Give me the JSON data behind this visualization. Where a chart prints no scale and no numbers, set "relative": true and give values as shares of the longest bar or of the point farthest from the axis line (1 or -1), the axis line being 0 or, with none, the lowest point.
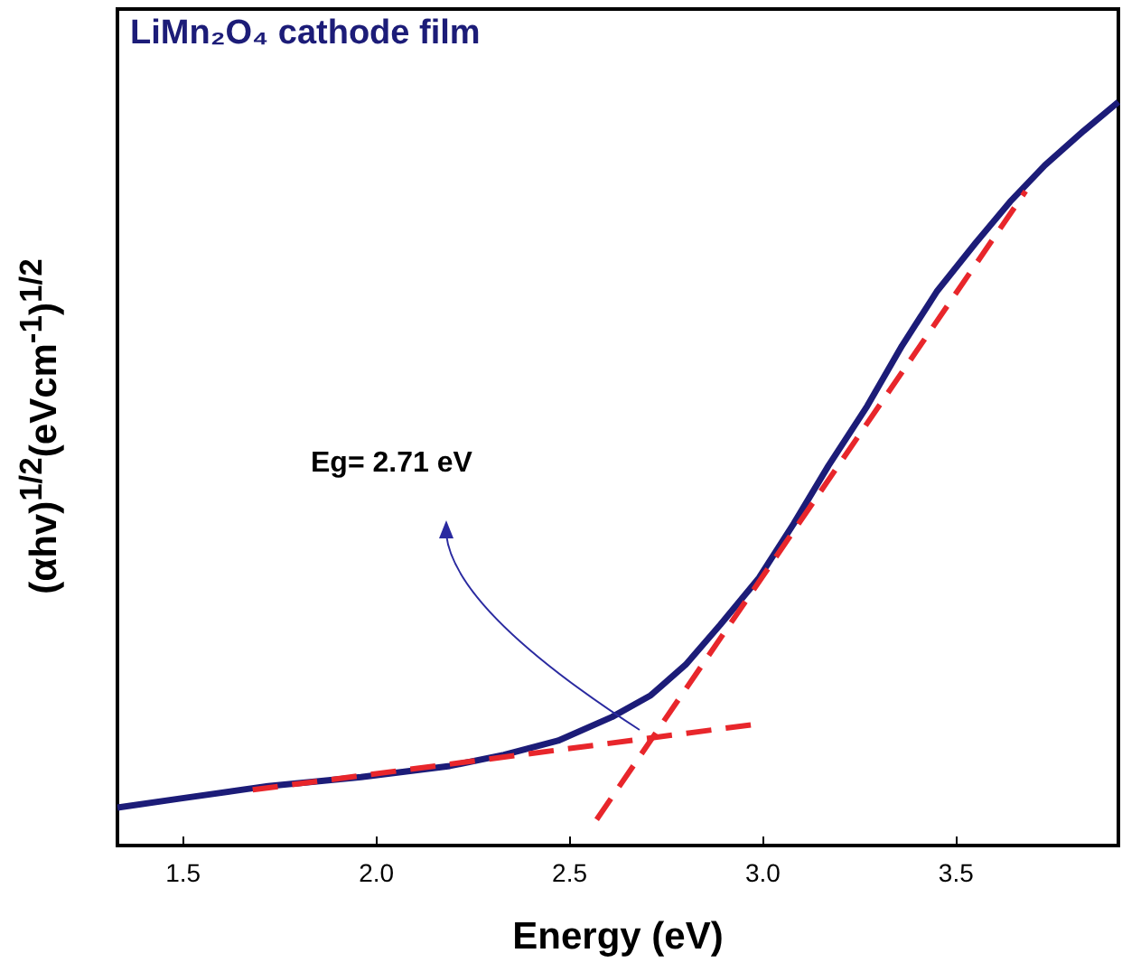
{
  "chart_data": {
    "type": "line",
    "title": "LiMn₂O₄ cathode film",
    "xlabel": "Energy (eV)",
    "ylabel": "(αhv)$^{1/2}$(eVcm$^{-1}$)$^{1/2}$",
    "relative": true,
    "xlim": [
      1.33,
      3.92
    ],
    "xticks": [
      1.5,
      {
        "value": 2,
        "label": "2.0"
      },
      2.5,
      {
        "value": 3,
        "label": "3.0"
      },
      3.5
    ],
    "grid": false,
    "marker": "none",
    "series": [
      {
        "color": "#1c1c78",
        "line_style": "solid",
        "x": [
          1.33,
          1.49,
          1.72,
          1.96,
          2.19,
          2.33,
          2.47,
          2.61,
          2.71,
          2.8,
          2.89,
          2.99,
          3.08,
          3.17,
          3.27,
          3.36,
          3.45,
          3.55,
          3.64,
          3.73,
          3.83,
          3.92
        ],
        "values": [
          0.051,
          0.063,
          0.08,
          0.092,
          0.107,
          0.122,
          0.141,
          0.173,
          0.202,
          0.243,
          0.297,
          0.36,
          0.433,
          0.511,
          0.591,
          0.672,
          0.745,
          0.81,
          0.866,
          0.915,
          0.961,
          1
        ]
      },
      {
        "color": "#e8262b",
        "line_style": "dashed",
        "x": [
          1.68,
          2.98
        ],
        "values": [
          0.075,
          0.163
        ]
      },
      {
        "color": "#e8262b",
        "line_style": "dashed",
        "x": [
          2.57,
          3.68
        ],
        "values": [
          0.035,
          0.88
        ]
      }
    ],
    "annotations": [
      "Eg= 2.71 eV"
    ]
  }
}
